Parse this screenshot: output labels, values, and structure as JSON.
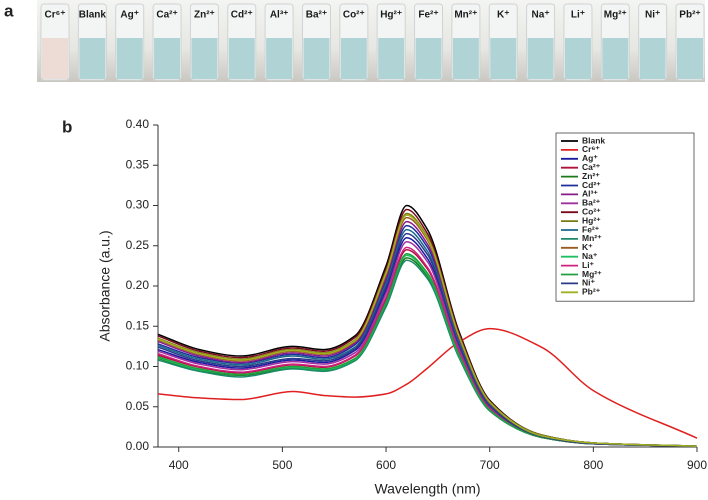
{
  "panel_a": {
    "label": "a",
    "vials": [
      "Cr⁶⁺",
      "Blank",
      "Ag⁺",
      "Ca²⁺",
      "Zn²⁺",
      "Cd²⁺",
      "Al³⁺",
      "Ba²⁺",
      "Co²⁺",
      "Hg²⁺",
      "Fe²⁺",
      "Mn²⁺",
      "K⁺",
      "Na⁺",
      "Li⁺",
      "Mg²⁺",
      "Ni⁺",
      "Pb²⁺"
    ]
  },
  "chart_data": {
    "type": "line",
    "panel_label": "b",
    "x_label": "Wavelength (nm)",
    "y_label": "Absorbance (a.u.)",
    "xlim": [
      380,
      900
    ],
    "xticks": [
      400,
      500,
      600,
      700,
      800,
      900
    ],
    "ylim": [
      0,
      0.4
    ],
    "yticks": [
      {
        "value": 0,
        "label": "0.00"
      },
      {
        "value": 0.05,
        "label": "0.05"
      },
      {
        "value": 0.1,
        "label": "0.10"
      },
      {
        "value": 0.15,
        "label": "0.15"
      },
      {
        "value": 0.2,
        "label": "0.20"
      },
      {
        "value": 0.25,
        "label": "0.25"
      },
      {
        "value": 0.3,
        "label": "0.30"
      },
      {
        "value": 0.35,
        "label": "0.35"
      },
      {
        "value": 0.4,
        "label": "0.40"
      }
    ],
    "legend": "upper right",
    "x": [
      380,
      420,
      460,
      510,
      540,
      570,
      600,
      620,
      640,
      670,
      700,
      750,
      800,
      900
    ],
    "series": [
      {
        "name": "Blank",
        "color": "#000000",
        "values": [
          0.14,
          0.121,
          0.113,
          0.125,
          0.121,
          0.138,
          0.225,
          0.3,
          0.27,
          0.145,
          0.058,
          0.015,
          0.005,
          0.001
        ]
      },
      {
        "name": "Cr⁶⁺",
        "color": "#e02020",
        "values": [
          0.066,
          0.061,
          0.059,
          0.069,
          0.064,
          0.062,
          0.066,
          0.078,
          0.098,
          0.13,
          0.147,
          0.124,
          0.07,
          0.011
        ]
      },
      {
        "name": "Ag⁺",
        "color": "#1a1aa0",
        "values": [
          0.121,
          0.105,
          0.098,
          0.108,
          0.105,
          0.12,
          0.195,
          0.26,
          0.234,
          0.126,
          0.05,
          0.013,
          0.004,
          0.001
        ]
      },
      {
        "name": "Ca²⁺",
        "color": "#b0103a",
        "values": [
          0.114,
          0.099,
          0.092,
          0.102,
          0.099,
          0.113,
          0.184,
          0.245,
          0.221,
          0.118,
          0.047,
          0.012,
          0.004,
          0.001
        ]
      },
      {
        "name": "Zn²⁺",
        "color": "#1a7a1a",
        "values": [
          0.11,
          0.095,
          0.089,
          0.098,
          0.095,
          0.108,
          0.176,
          0.235,
          0.212,
          0.114,
          0.045,
          0.012,
          0.004,
          0.001
        ]
      },
      {
        "name": "Cd²⁺",
        "color": "#1e2e9a",
        "values": [
          0.128,
          0.111,
          0.104,
          0.115,
          0.111,
          0.127,
          0.206,
          0.275,
          0.248,
          0.133,
          0.053,
          0.014,
          0.005,
          0.001
        ]
      },
      {
        "name": "Al³⁺",
        "color": "#8a1a8a",
        "values": [
          0.131,
          0.113,
          0.105,
          0.117,
          0.113,
          0.129,
          0.21,
          0.28,
          0.252,
          0.135,
          0.054,
          0.014,
          0.005,
          0.001
        ]
      },
      {
        "name": "Ba²⁺",
        "color": "#a030a0",
        "values": [
          0.119,
          0.103,
          0.096,
          0.106,
          0.103,
          0.117,
          0.191,
          0.255,
          0.23,
          0.123,
          0.049,
          0.013,
          0.004,
          0.001
        ]
      },
      {
        "name": "Co²⁺",
        "color": "#7a0a1a",
        "values": [
          0.138,
          0.119,
          0.111,
          0.123,
          0.119,
          0.136,
          0.221,
          0.295,
          0.265,
          0.143,
          0.057,
          0.015,
          0.005,
          0.001
        ]
      },
      {
        "name": "Hg²⁺",
        "color": "#7a7a10",
        "values": [
          0.135,
          0.117,
          0.109,
          0.121,
          0.117,
          0.133,
          0.218,
          0.29,
          0.261,
          0.14,
          0.056,
          0.015,
          0.005,
          0.001
        ]
      },
      {
        "name": "Fe²⁺",
        "color": "#1a6a8a",
        "values": [
          0.126,
          0.109,
          0.102,
          0.113,
          0.109,
          0.124,
          0.203,
          0.27,
          0.243,
          0.131,
          0.052,
          0.014,
          0.005,
          0.001
        ]
      },
      {
        "name": "Mn²⁺",
        "color": "#1a8a6a",
        "values": [
          0.108,
          0.094,
          0.087,
          0.097,
          0.094,
          0.107,
          0.174,
          0.232,
          0.209,
          0.112,
          0.045,
          0.012,
          0.004,
          0.001
        ]
      },
      {
        "name": "K⁺",
        "color": "#9a5a20",
        "values": [
          0.133,
          0.115,
          0.107,
          0.119,
          0.115,
          0.131,
          0.214,
          0.285,
          0.257,
          0.138,
          0.055,
          0.014,
          0.005,
          0.001
        ]
      },
      {
        "name": "Na⁺",
        "color": "#20c060",
        "values": [
          0.111,
          0.096,
          0.09,
          0.099,
          0.096,
          0.109,
          0.179,
          0.238,
          0.214,
          0.115,
          0.046,
          0.012,
          0.004,
          0.001
        ]
      },
      {
        "name": "Li⁺",
        "color": "#d02080",
        "values": [
          0.116,
          0.1,
          0.093,
          0.103,
          0.1,
          0.114,
          0.186,
          0.248,
          0.223,
          0.12,
          0.048,
          0.012,
          0.004,
          0.001
        ]
      },
      {
        "name": "Mg²⁺",
        "color": "#20a040",
        "values": [
          0.112,
          0.097,
          0.09,
          0.1,
          0.097,
          0.11,
          0.18,
          0.24,
          0.216,
          0.116,
          0.046,
          0.012,
          0.004,
          0.001
        ]
      },
      {
        "name": "Ni⁺",
        "color": "#2a3a8a",
        "values": [
          0.124,
          0.107,
          0.1,
          0.11,
          0.107,
          0.122,
          0.199,
          0.265,
          0.239,
          0.128,
          0.051,
          0.013,
          0.004,
          0.001
        ]
      },
      {
        "name": "Pb²⁺",
        "color": "#a0b020",
        "values": [
          0.134,
          0.116,
          0.108,
          0.12,
          0.116,
          0.132,
          0.216,
          0.288,
          0.259,
          0.139,
          0.056,
          0.014,
          0.005,
          0.001
        ]
      }
    ]
  }
}
